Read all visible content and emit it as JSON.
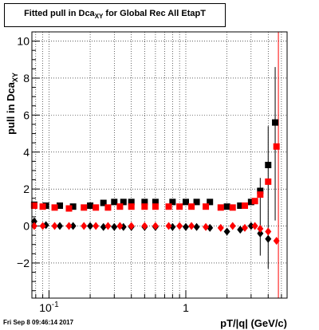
{
  "chart_data": {
    "type": "scatter",
    "title_main": "Fitted pull in Dca",
    "title_sub": "XY",
    "title_tail": " for Global Rec All EtapT",
    "xlabel": "pT/|q| (GeV/c)",
    "ylabel_main": "pull in Dca",
    "ylabel_sub": "XY",
    "x_scale": "log",
    "xlim": [
      0.075,
      5.5
    ],
    "ylim": [
      -3.9,
      10.5
    ],
    "grid": true,
    "x_ticks": [
      {
        "value": 0.1,
        "label": "10",
        "exp": "-1"
      },
      {
        "value": 1,
        "label": "1",
        "exp": ""
      }
    ],
    "y_ticks": [
      {
        "value": -2,
        "label": "−2"
      },
      {
        "value": 0,
        "label": "0"
      },
      {
        "value": 2,
        "label": "2"
      },
      {
        "value": 4,
        "label": "4"
      },
      {
        "value": 6,
        "label": "6"
      },
      {
        "value": 8,
        "label": "8"
      },
      {
        "value": 10,
        "label": "10"
      }
    ],
    "series": [
      {
        "marker": "square",
        "color": "#000000",
        "x": [
          0.078,
          0.095,
          0.12,
          0.15,
          0.2,
          0.25,
          0.3,
          0.35,
          0.4,
          0.5,
          0.6,
          0.8,
          1.0,
          1.2,
          1.5,
          2.0,
          2.5,
          3.0,
          3.5,
          4.0,
          4.5
        ],
        "y": [
          1.15,
          1.1,
          1.1,
          1.05,
          1.1,
          1.25,
          1.3,
          1.3,
          1.3,
          1.3,
          1.3,
          1.3,
          1.3,
          1.3,
          1.3,
          1.05,
          1.1,
          1.3,
          1.9,
          3.3,
          5.6
        ]
      },
      {
        "marker": "diamond",
        "color": "#000000",
        "x": [
          0.078,
          0.095,
          0.12,
          0.15,
          0.2,
          0.25,
          0.3,
          0.35,
          0.4,
          0.5,
          0.6,
          0.8,
          1.0,
          1.2,
          1.5,
          2.0,
          2.5,
          3.0,
          3.5,
          4.0
        ],
        "y": [
          0.25,
          0.05,
          0.0,
          0.0,
          0.0,
          -0.05,
          -0.05,
          -0.05,
          -0.05,
          -0.05,
          -0.05,
          -0.05,
          -0.05,
          -0.05,
          -0.1,
          -0.3,
          -0.2,
          0.0,
          -0.4,
          -0.7
        ]
      },
      {
        "marker": "square",
        "color": "#ff0000",
        "x": [
          0.078,
          0.09,
          0.11,
          0.14,
          0.18,
          0.22,
          0.27,
          0.33,
          0.4,
          0.5,
          0.6,
          0.75,
          0.9,
          1.1,
          1.4,
          1.8,
          2.2,
          2.7,
          3.2,
          3.5,
          4.0,
          4.6
        ],
        "y": [
          1.1,
          1.05,
          1.0,
          0.95,
          1.0,
          1.0,
          1.0,
          1.05,
          1.05,
          1.05,
          1.05,
          1.05,
          1.05,
          1.05,
          1.05,
          1.0,
          1.0,
          1.1,
          1.35,
          1.7,
          2.4,
          4.3
        ]
      },
      {
        "marker": "diamond",
        "color": "#ff0000",
        "x": [
          0.078,
          0.09,
          0.11,
          0.14,
          0.18,
          0.22,
          0.27,
          0.33,
          0.4,
          0.5,
          0.6,
          0.75,
          0.9,
          1.1,
          1.4,
          1.8,
          2.2,
          2.7,
          3.2,
          3.5,
          4.0,
          4.6
        ],
        "y": [
          0.0,
          0.0,
          0.0,
          0.0,
          0.0,
          0.0,
          0.0,
          0.0,
          0.0,
          0.0,
          0.0,
          0.0,
          0.0,
          0.0,
          -0.05,
          -0.1,
          0.0,
          -0.1,
          0.0,
          -0.15,
          -0.3,
          -0.8
        ]
      }
    ]
  },
  "footer": {
    "timestamp": "Fri Sep  8 09:46:14 2017"
  }
}
